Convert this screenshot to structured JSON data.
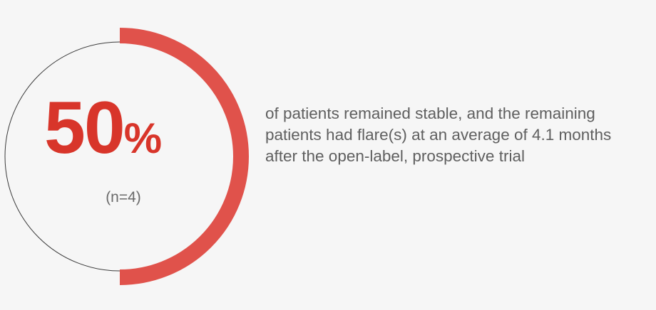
{
  "chart_data": {
    "type": "pie",
    "variant": "donut",
    "value": 50,
    "unit": "%",
    "display_value": "50",
    "note": "(n=4)",
    "description": "of patients remained stable, and the remaining patients had flare(s) at an average of 4.1 months after the open-label, prospective trial",
    "colors": {
      "filled": "#e0524b",
      "track": "#3a3a3a",
      "value_text": "#d8352a",
      "text": "#5f5f5f"
    }
  }
}
